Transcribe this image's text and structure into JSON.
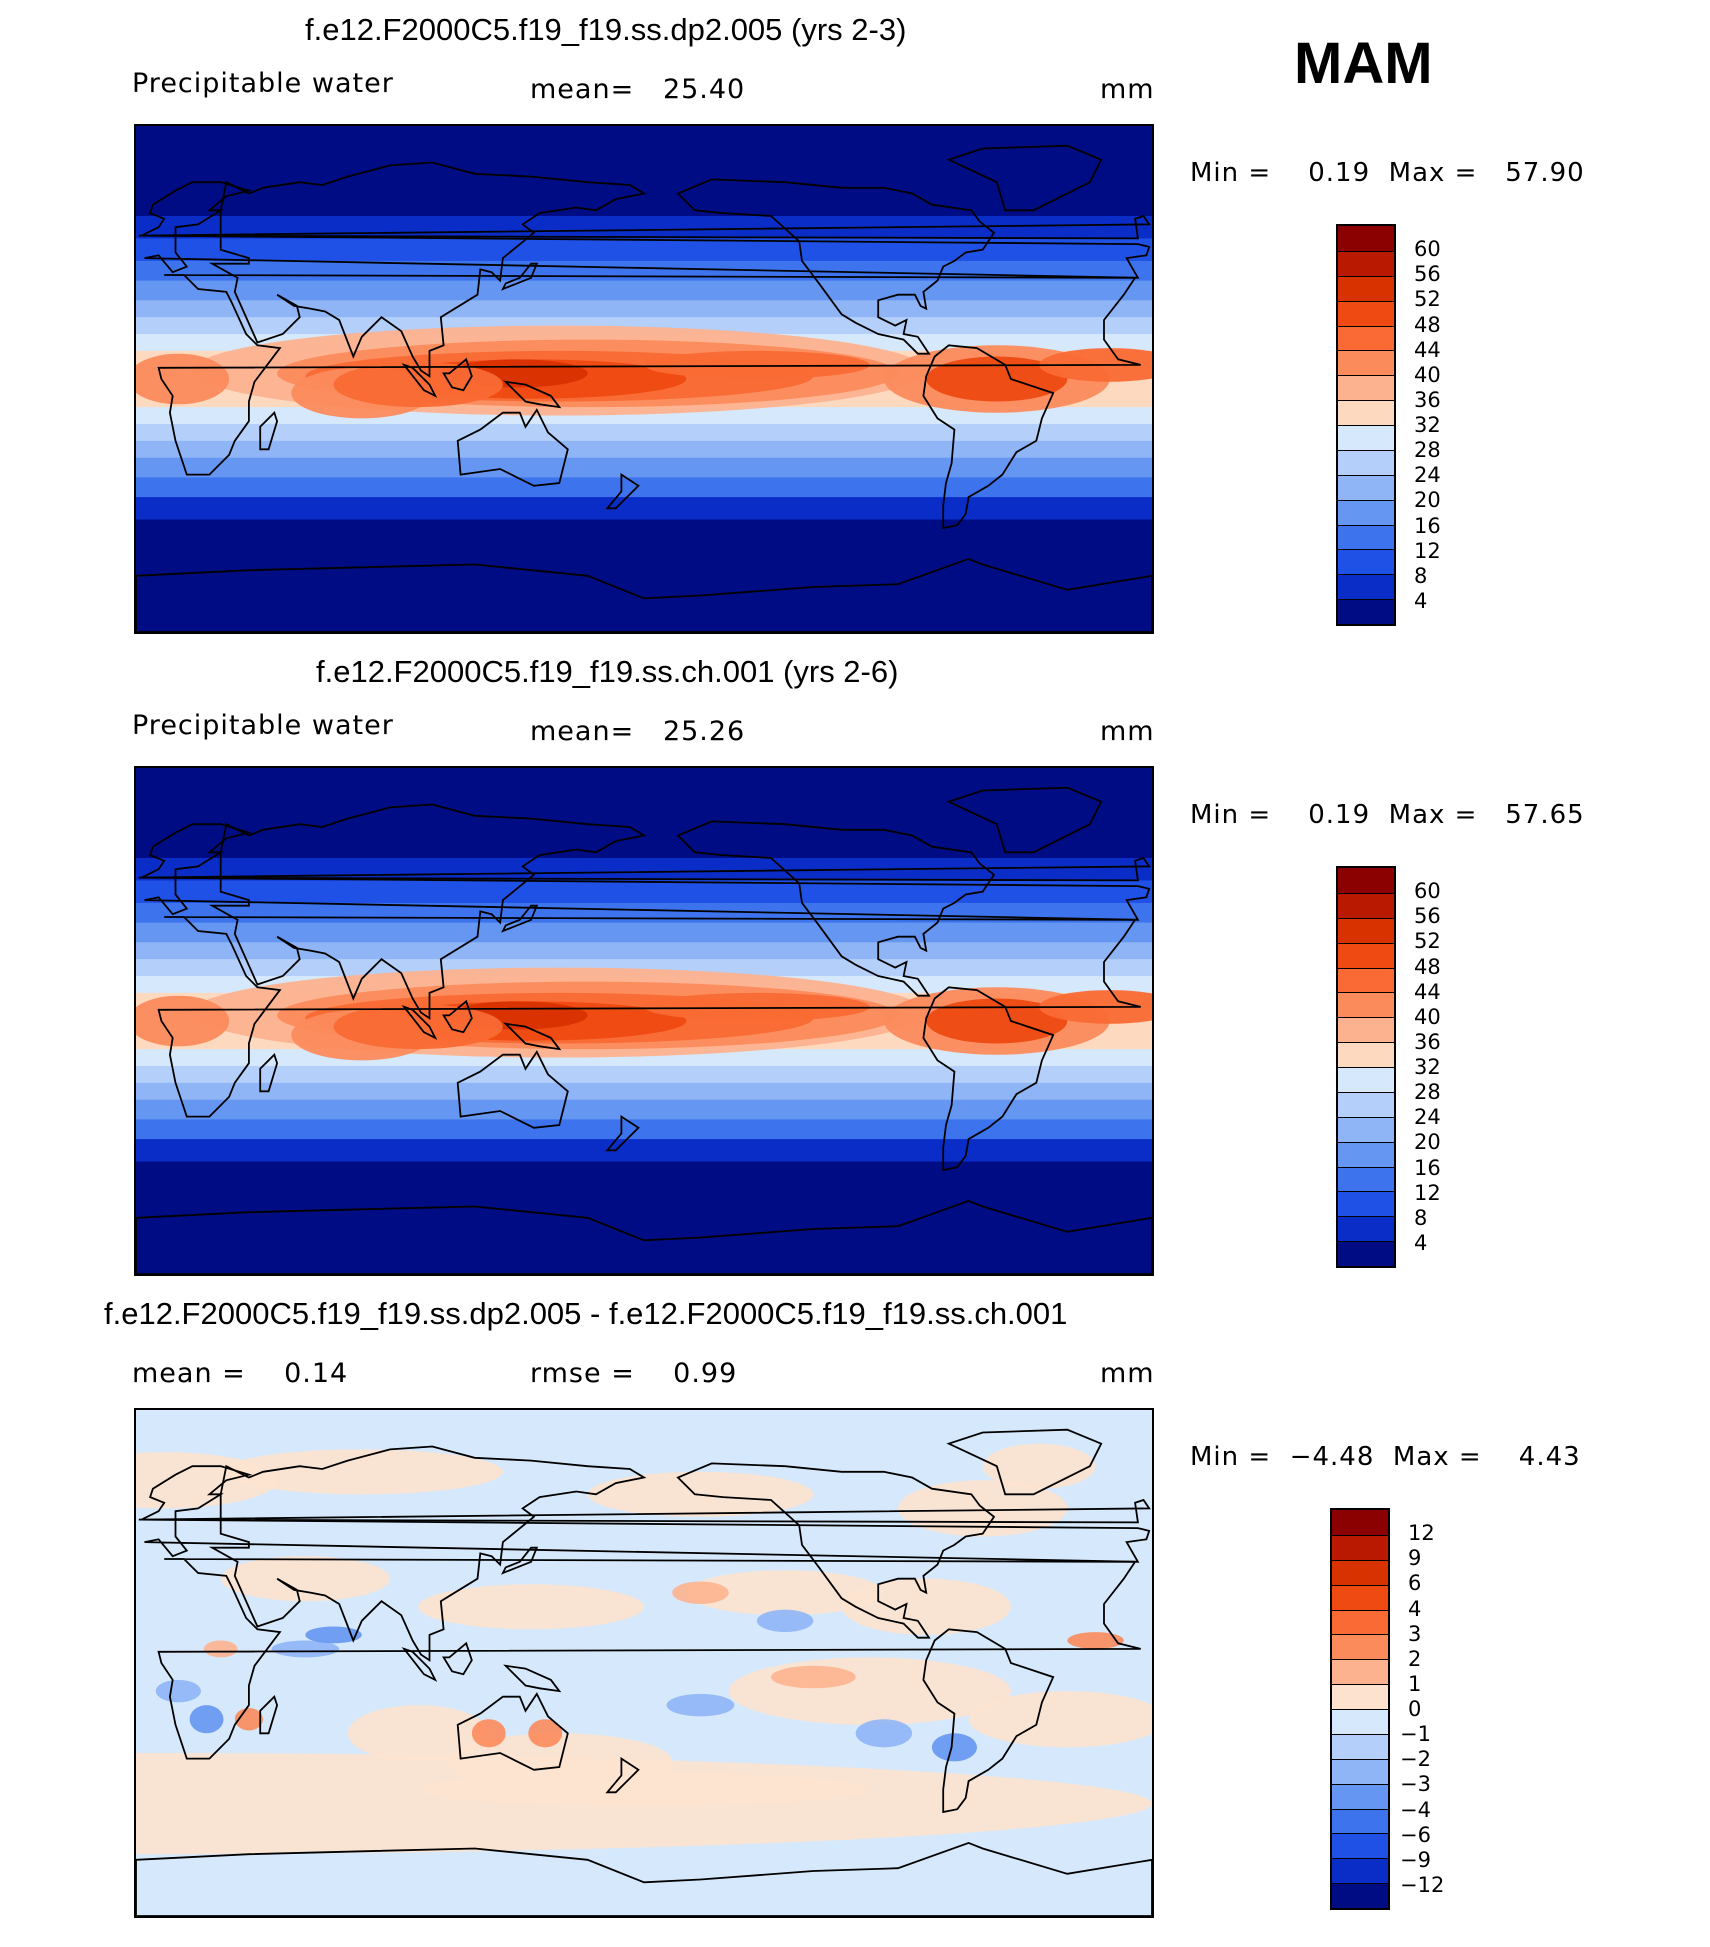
{
  "season": "MAM",
  "panels": [
    {
      "title": "f.e12.F2000C5.f19_f19.ss.dp2.005 (yrs 2-3)",
      "variable": "Precipitable water",
      "stat1": "mean=   25.40",
      "stat2": "",
      "units": "mm",
      "minmax": "Min =    0.19  Max =   57.90",
      "field": "absolute",
      "colorbar": {
        "labels": [
          "60",
          "56",
          "52",
          "48",
          "44",
          "40",
          "36",
          "32",
          "28",
          "24",
          "20",
          "16",
          "12",
          "8",
          "4"
        ],
        "colors": [
          "#8b0000",
          "#b81900",
          "#d83200",
          "#ee4a12",
          "#fa6a34",
          "#fc8b5c",
          "#fdb28f",
          "#fdd9bf",
          "#d6e8fb",
          "#b4d0fa",
          "#8fb5f6",
          "#6596f2",
          "#3d74ee",
          "#2051e6",
          "#0a2dc8",
          "#000c84"
        ]
      }
    },
    {
      "title": "f.e12.F2000C5.f19_f19.ss.ch.001 (yrs 2-6)",
      "variable": "Precipitable water",
      "stat1": "mean=   25.26",
      "stat2": "",
      "units": "mm",
      "minmax": "Min =    0.19  Max =   57.65",
      "field": "absolute",
      "colorbar": {
        "labels": [
          "60",
          "56",
          "52",
          "48",
          "44",
          "40",
          "36",
          "32",
          "28",
          "24",
          "20",
          "16",
          "12",
          "8",
          "4"
        ],
        "colors": [
          "#8b0000",
          "#b81900",
          "#d83200",
          "#ee4a12",
          "#fa6a34",
          "#fc8b5c",
          "#fdb28f",
          "#fdd9bf",
          "#d6e8fb",
          "#b4d0fa",
          "#8fb5f6",
          "#6596f2",
          "#3d74ee",
          "#2051e6",
          "#0a2dc8",
          "#000c84"
        ]
      }
    },
    {
      "title": "f.e12.F2000C5.f19_f19.ss.dp2.005 - f.e12.F2000C5.f19_f19.ss.ch.001",
      "variable": "mean =    0.14",
      "stat1": "rmse =    0.99",
      "stat2": "",
      "units": "mm",
      "minmax": "Min =  −4.48  Max =    4.43",
      "field": "difference",
      "colorbar": {
        "labels": [
          "12",
          "9",
          "6",
          "4",
          "3",
          "2",
          "1",
          "0",
          "−1",
          "−2",
          "−3",
          "−4",
          "−6",
          "−9",
          "−12"
        ],
        "colors": [
          "#8b0000",
          "#b81900",
          "#d83200",
          "#ee4a12",
          "#fa6a34",
          "#fc8b5c",
          "#fdb28f",
          "#fde3cf",
          "#d6e8fb",
          "#b4d0fa",
          "#8fb5f6",
          "#6596f2",
          "#3d74ee",
          "#2051e6",
          "#0a2dc8",
          "#000c84"
        ]
      }
    }
  ]
}
